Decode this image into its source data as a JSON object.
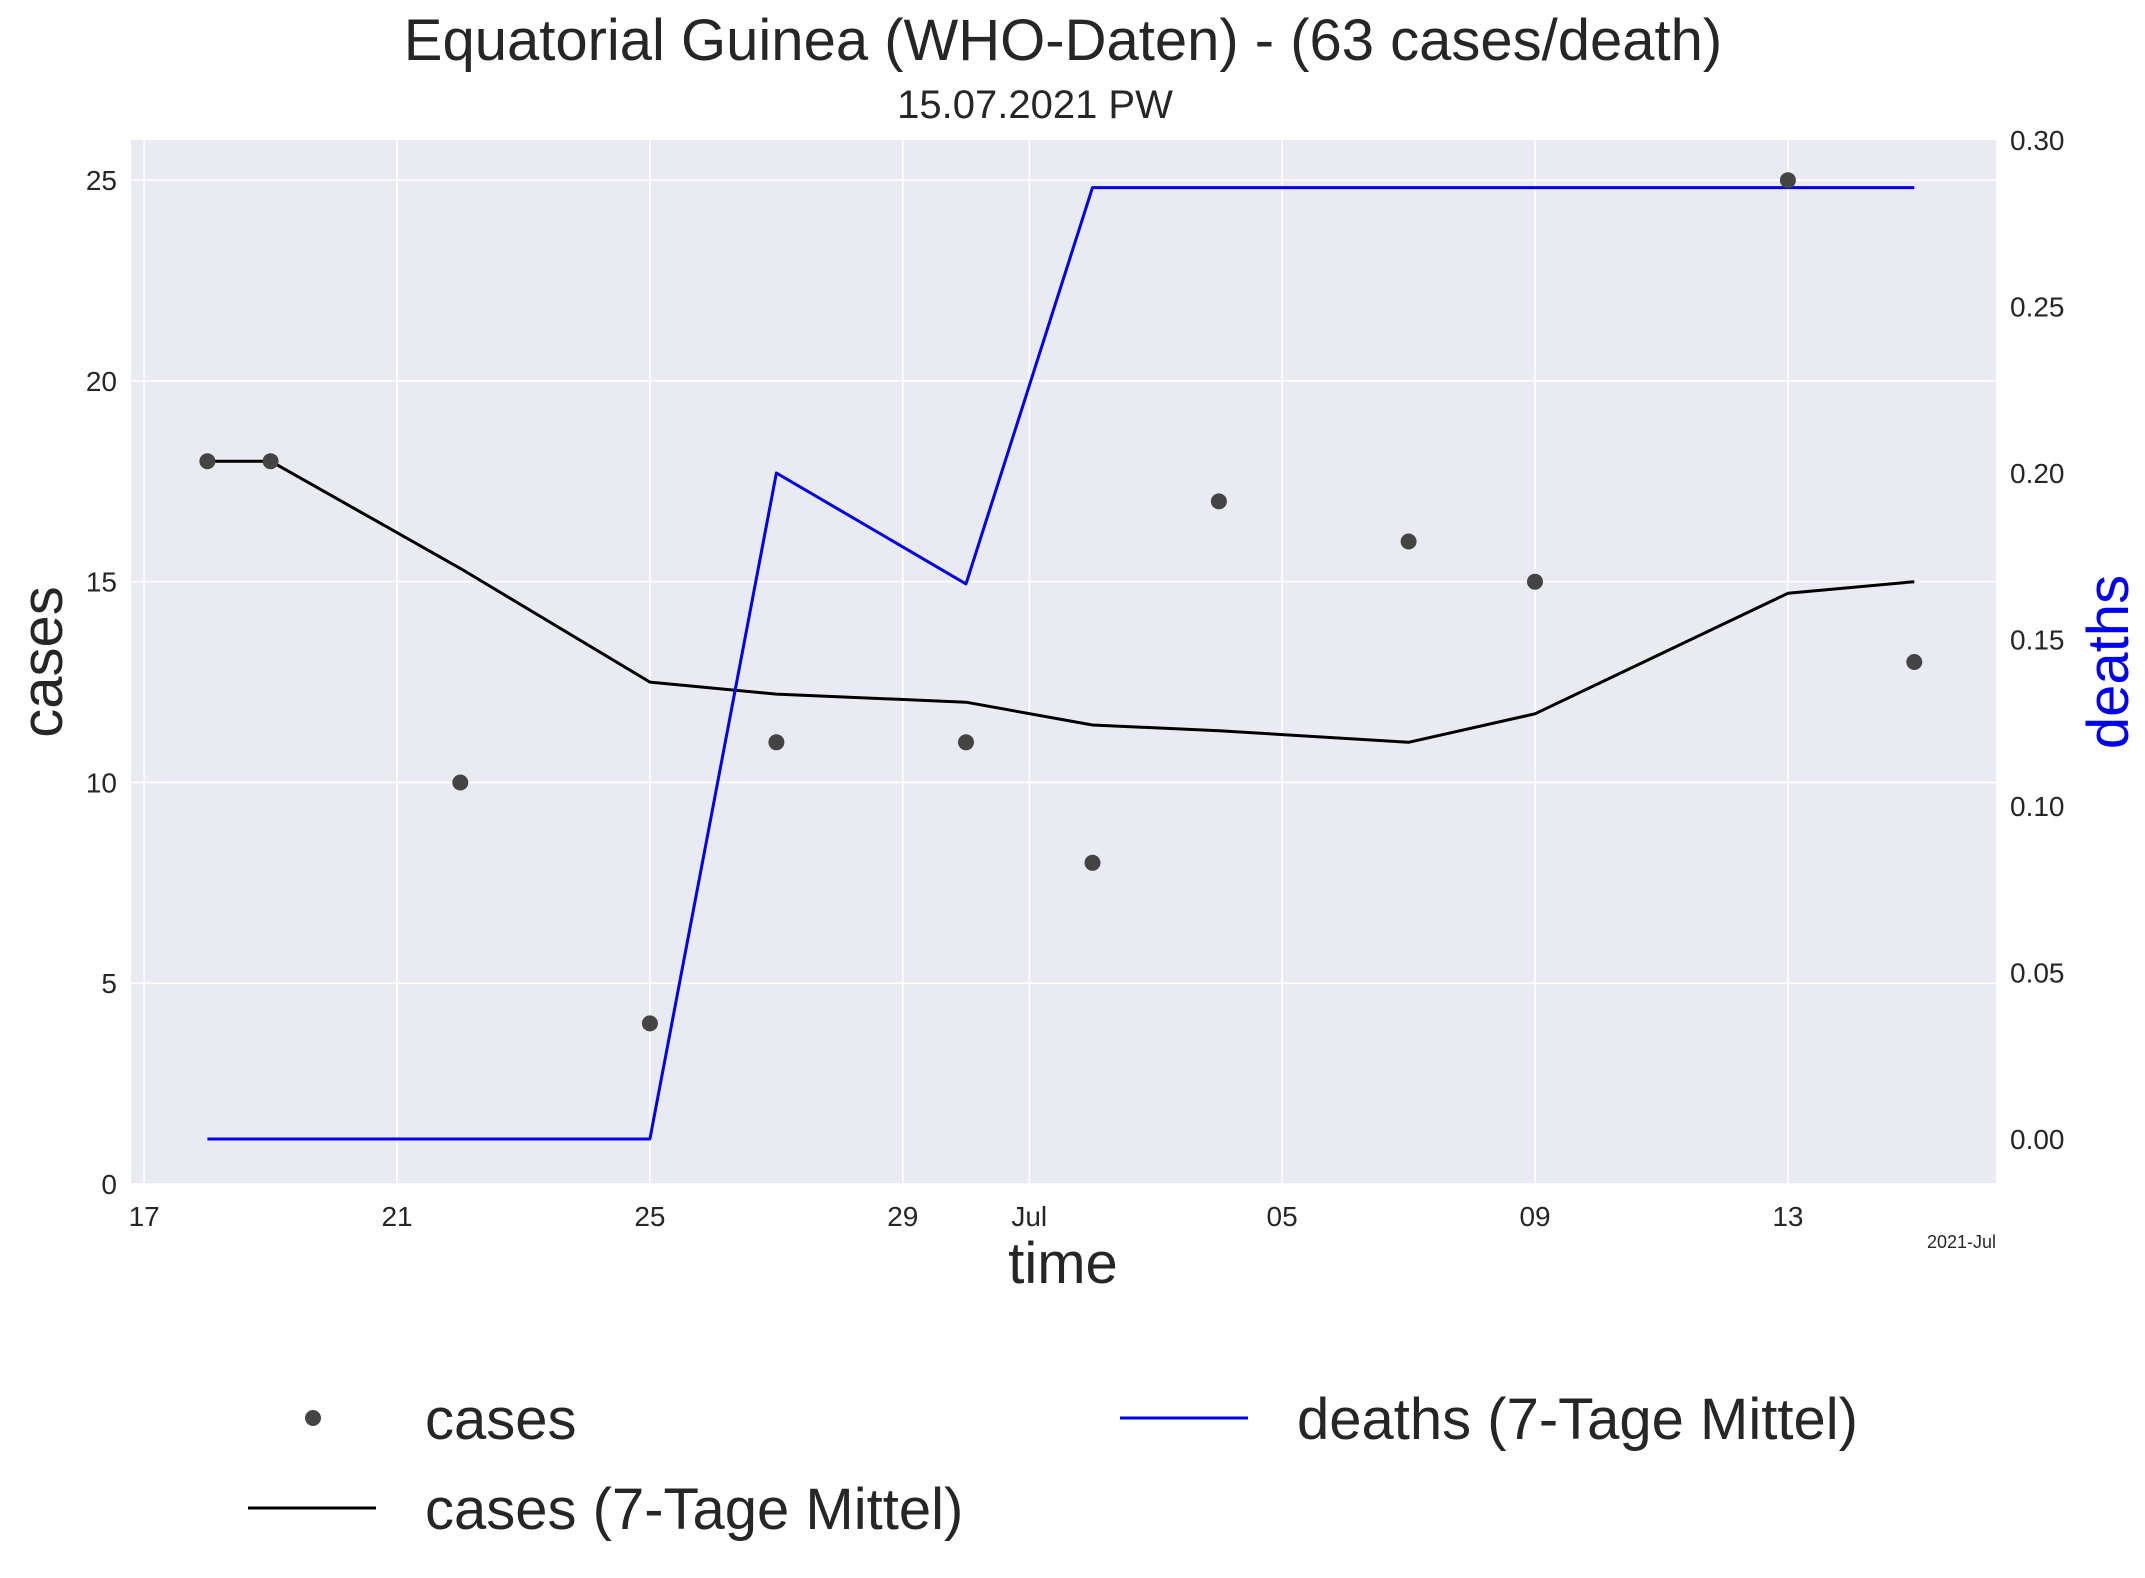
{
  "chart_data": {
    "type": "line",
    "title": "Equatorial Guinea (WHO-Daten) - (63 cases/death)",
    "subtitle": "15.07.2021 PW",
    "xlabel": "time",
    "ylabel": "cases",
    "ylabel_right": "deaths",
    "x_offset_label": "2021-Jul",
    "x_ticks": [
      {
        "date": "2021-06-17",
        "label": "17"
      },
      {
        "date": "2021-06-21",
        "label": "21"
      },
      {
        "date": "2021-06-25",
        "label": "25"
      },
      {
        "date": "2021-06-29",
        "label": "29"
      },
      {
        "date": "2021-07-01",
        "label": "Jul"
      },
      {
        "date": "2021-07-05",
        "label": "05"
      },
      {
        "date": "2021-07-09",
        "label": "09"
      },
      {
        "date": "2021-07-13",
        "label": "13"
      }
    ],
    "xlim": [
      "2021-06-16T19:00",
      "2021-07-16T07:00"
    ],
    "ylim": [
      0,
      26
    ],
    "ylim_right": [
      -0.0135,
      0.3
    ],
    "y_ticks": [
      0,
      5,
      10,
      15,
      20,
      25
    ],
    "y_ticks_right": [
      0.0,
      0.05,
      0.1,
      0.15,
      0.2,
      0.25,
      0.3
    ],
    "y_ticks_right_labels": [
      "0.00",
      "0.05",
      "0.10",
      "0.15",
      "0.20",
      "0.25",
      "0.30"
    ],
    "grid": true,
    "legend_position": "bottom",
    "series": [
      {
        "name": "cases",
        "kind": "scatter",
        "axis": "left",
        "color": "#444444",
        "points": [
          {
            "x": "2021-06-18",
            "y": 18
          },
          {
            "x": "2021-06-19",
            "y": 18
          },
          {
            "x": "2021-06-22",
            "y": 10
          },
          {
            "x": "2021-06-25",
            "y": 4
          },
          {
            "x": "2021-06-27",
            "y": 11
          },
          {
            "x": "2021-06-30",
            "y": 11
          },
          {
            "x": "2021-07-02",
            "y": 8
          },
          {
            "x": "2021-07-04",
            "y": 17
          },
          {
            "x": "2021-07-07",
            "y": 16
          },
          {
            "x": "2021-07-09",
            "y": 15
          },
          {
            "x": "2021-07-13",
            "y": 25
          },
          {
            "x": "2021-07-15",
            "y": 13
          }
        ]
      },
      {
        "name": "cases (7-Tage Mittel)",
        "kind": "line",
        "axis": "left",
        "color": "#000000",
        "points": [
          {
            "x": "2021-06-18",
            "y": 18
          },
          {
            "x": "2021-06-19",
            "y": 18
          },
          {
            "x": "2021-06-22",
            "y": 15.33
          },
          {
            "x": "2021-06-25",
            "y": 12.5
          },
          {
            "x": "2021-06-27",
            "y": 12.2
          },
          {
            "x": "2021-06-30",
            "y": 12.0
          },
          {
            "x": "2021-07-02",
            "y": 11.43
          },
          {
            "x": "2021-07-04",
            "y": 11.29
          },
          {
            "x": "2021-07-07",
            "y": 11.0
          },
          {
            "x": "2021-07-09",
            "y": 11.71
          },
          {
            "x": "2021-07-13",
            "y": 14.71
          },
          {
            "x": "2021-07-15",
            "y": 15.0
          }
        ]
      },
      {
        "name": "deaths (7-Tage Mittel)",
        "kind": "line",
        "axis": "right",
        "color": "#0000ee",
        "points": [
          {
            "x": "2021-06-18",
            "y": 0.0
          },
          {
            "x": "2021-06-19",
            "y": 0.0
          },
          {
            "x": "2021-06-22",
            "y": 0.0
          },
          {
            "x": "2021-06-25",
            "y": 0.0
          },
          {
            "x": "2021-06-27",
            "y": 0.2
          },
          {
            "x": "2021-06-30",
            "y": 0.1667
          },
          {
            "x": "2021-07-02",
            "y": 0.2857
          },
          {
            "x": "2021-07-04",
            "y": 0.2857
          },
          {
            "x": "2021-07-07",
            "y": 0.2857
          },
          {
            "x": "2021-07-09",
            "y": 0.2857
          },
          {
            "x": "2021-07-13",
            "y": 0.2857
          },
          {
            "x": "2021-07-15",
            "y": 0.2857
          }
        ]
      }
    ]
  }
}
